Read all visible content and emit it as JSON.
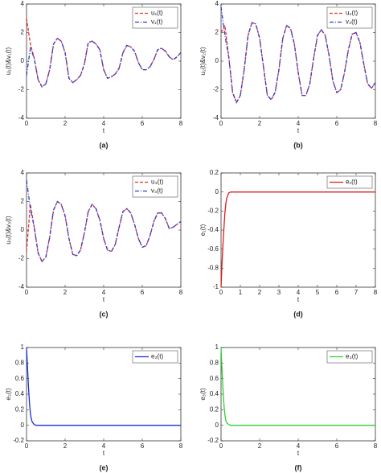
{
  "chart_data": [
    {
      "type": "line",
      "caption": "(a)",
      "xlabel": "t",
      "ylabel": "u₁(t)&v₁(t)",
      "xlim": [
        0,
        8
      ],
      "ylim": [
        -4,
        4
      ],
      "xticks": [
        0,
        2,
        4,
        6,
        8
      ],
      "yticks": [
        -4,
        -2,
        0,
        2,
        4
      ],
      "x": [
        0,
        0.2,
        0.4,
        0.6,
        0.8,
        1,
        1.2,
        1.4,
        1.6,
        1.8,
        2,
        2.2,
        2.4,
        2.6,
        2.8,
        3,
        3.2,
        3.4,
        3.6,
        3.8,
        4,
        4.2,
        4.4,
        4.6,
        4.8,
        5,
        5.2,
        5.4,
        5.6,
        5.8,
        6,
        6.2,
        6.4,
        6.6,
        6.8,
        7,
        7.2,
        7.4,
        7.6,
        7.8,
        8
      ],
      "series": [
        {
          "name": "u₁(t)",
          "color": "#e8312a",
          "style": "dashed",
          "values": [
            3.0,
            1.2,
            0.2,
            -1.3,
            -1.8,
            -1.6,
            -0.6,
            1.2,
            1.6,
            1.4,
            0.6,
            -1.2,
            -1.5,
            -1.3,
            -1.0,
            -0.2,
            1.3,
            1.4,
            1.2,
            0.8,
            -0.6,
            -1.2,
            -1.1,
            -0.9,
            -0.5,
            0.6,
            1.1,
            1.0,
            0.7,
            -0.1,
            -0.6,
            -0.6,
            -0.4,
            0.1,
            0.8,
            0.9,
            0.7,
            0.3,
            0.1,
            0.3,
            0.6
          ]
        },
        {
          "name": "v₁(t)",
          "color": "#2b3fd6",
          "style": "dashdot",
          "values": [
            -1.0,
            0.9,
            0.2,
            -1.3,
            -1.8,
            -1.6,
            -0.6,
            1.2,
            1.6,
            1.4,
            0.6,
            -1.2,
            -1.5,
            -1.3,
            -1.0,
            -0.2,
            1.3,
            1.4,
            1.2,
            0.8,
            -0.6,
            -1.2,
            -1.1,
            -0.9,
            -0.5,
            0.6,
            1.1,
            1.0,
            0.7,
            -0.1,
            -0.6,
            -0.6,
            -0.4,
            0.1,
            0.8,
            0.9,
            0.7,
            0.3,
            0.1,
            0.3,
            0.6
          ]
        }
      ]
    },
    {
      "type": "line",
      "caption": "(b)",
      "xlabel": "t",
      "ylabel": "u₂(t)&v₂(t)",
      "xlim": [
        0,
        8
      ],
      "ylim": [
        -4,
        4
      ],
      "xticks": [
        0,
        2,
        4,
        6,
        8
      ],
      "yticks": [
        -4,
        -2,
        0,
        2,
        4
      ],
      "x": [
        0,
        0.2,
        0.4,
        0.6,
        0.8,
        1,
        1.2,
        1.4,
        1.6,
        1.8,
        2,
        2.2,
        2.4,
        2.6,
        2.8,
        3,
        3.2,
        3.4,
        3.6,
        3.8,
        4,
        4.2,
        4.4,
        4.6,
        4.8,
        5,
        5.2,
        5.4,
        5.6,
        5.8,
        6,
        6.2,
        6.4,
        6.6,
        6.8,
        7,
        7.2,
        7.4,
        7.6,
        7.8,
        8
      ],
      "series": [
        {
          "name": "u₂(t)",
          "color": "#e8312a",
          "style": "dashed",
          "values": [
            2.0,
            2.5,
            0.3,
            -2.2,
            -2.9,
            -2.4,
            -0.6,
            1.8,
            2.7,
            2.6,
            1.6,
            -0.4,
            -2.4,
            -2.7,
            -2.2,
            -0.6,
            1.6,
            2.5,
            2.3,
            1.2,
            -0.8,
            -2.4,
            -2.4,
            -1.6,
            0.2,
            1.8,
            2.2,
            1.8,
            0.4,
            -1.4,
            -2.2,
            -2.0,
            -0.8,
            0.8,
            1.9,
            2.0,
            1.3,
            -0.2,
            -1.6,
            -1.9,
            -1.5
          ]
        },
        {
          "name": "v₂(t)",
          "color": "#2b3fd6",
          "style": "dashdot",
          "values": [
            3.8,
            1.8,
            0.3,
            -2.2,
            -2.9,
            -2.4,
            -0.6,
            1.8,
            2.7,
            2.6,
            1.6,
            -0.4,
            -2.4,
            -2.7,
            -2.2,
            -0.6,
            1.6,
            2.5,
            2.3,
            1.2,
            -0.8,
            -2.4,
            -2.4,
            -1.6,
            0.2,
            1.8,
            2.2,
            1.8,
            0.4,
            -1.4,
            -2.2,
            -2.0,
            -0.8,
            0.8,
            1.9,
            2.0,
            1.3,
            -0.2,
            -1.6,
            -1.9,
            -1.5
          ]
        }
      ]
    },
    {
      "type": "line",
      "caption": "(c)",
      "xlabel": "t",
      "ylabel": "u₃(t)&v₃(t)",
      "xlim": [
        0,
        8
      ],
      "ylim": [
        -4,
        4
      ],
      "xticks": [
        0,
        2,
        4,
        6,
        8
      ],
      "yticks": [
        -4,
        -2,
        0,
        2,
        4
      ],
      "x": [
        0,
        0.2,
        0.4,
        0.6,
        0.8,
        1,
        1.2,
        1.4,
        1.6,
        1.8,
        2,
        2.2,
        2.4,
        2.6,
        2.8,
        3,
        3.2,
        3.4,
        3.6,
        3.8,
        4,
        4.2,
        4.4,
        4.6,
        4.8,
        5,
        5.2,
        5.4,
        5.6,
        5.8,
        6,
        6.2,
        6.4,
        6.6,
        6.8,
        7,
        7.2,
        7.4,
        7.6,
        7.8,
        8
      ],
      "series": [
        {
          "name": "u₃(t)",
          "color": "#e8312a",
          "style": "dashed",
          "values": [
            -1.5,
            1.8,
            0.2,
            -1.6,
            -2.2,
            -1.9,
            -0.5,
            1.4,
            2.0,
            1.8,
            1.0,
            -0.6,
            -1.7,
            -1.8,
            -1.4,
            -0.2,
            1.3,
            1.8,
            1.5,
            0.7,
            -0.6,
            -1.4,
            -1.5,
            -1.0,
            0.2,
            1.3,
            1.5,
            1.2,
            0.4,
            -0.6,
            -1.2,
            -1.1,
            -0.4,
            0.6,
            1.2,
            1.2,
            0.8,
            0.1,
            0.2,
            0.4,
            0.6
          ]
        },
        {
          "name": "v₃(t)",
          "color": "#2b3fd6",
          "style": "dashdot",
          "values": [
            3.5,
            1.5,
            0.2,
            -1.6,
            -2.2,
            -1.9,
            -0.5,
            1.4,
            2.0,
            1.8,
            1.0,
            -0.6,
            -1.7,
            -1.8,
            -1.4,
            -0.2,
            1.3,
            1.8,
            1.5,
            0.7,
            -0.6,
            -1.4,
            -1.5,
            -1.0,
            0.2,
            1.3,
            1.5,
            1.2,
            0.4,
            -0.6,
            -1.2,
            -1.1,
            -0.4,
            0.6,
            1.2,
            1.2,
            0.8,
            0.1,
            0.2,
            0.4,
            0.6
          ]
        }
      ]
    },
    {
      "type": "line",
      "caption": "(d)",
      "xlabel": "t",
      "ylabel": "e₁(t)",
      "xlim": [
        0,
        8
      ],
      "ylim": [
        -1,
        0.2
      ],
      "xticks": [
        0,
        1,
        2,
        3,
        4,
        5,
        6,
        7,
        8
      ],
      "yticks": [
        -1,
        -0.8,
        -0.6,
        -0.4,
        -0.2,
        0,
        0.2
      ],
      "x": [
        0,
        0.05,
        0.1,
        0.15,
        0.2,
        0.25,
        0.3,
        0.4,
        0.5,
        1,
        2,
        4,
        6,
        8
      ],
      "series": [
        {
          "name": "e₁(t)",
          "color": "#e01b1b",
          "style": "solid",
          "values": [
            -1,
            -0.75,
            -0.55,
            -0.38,
            -0.22,
            -0.12,
            -0.06,
            -0.01,
            0,
            0,
            0,
            0,
            0,
            0
          ]
        }
      ]
    },
    {
      "type": "line",
      "caption": "(e)",
      "xlabel": "t",
      "ylabel": "e₂(t)",
      "xlim": [
        0,
        8
      ],
      "ylim": [
        -0.2,
        1
      ],
      "xticks": [
        0,
        2,
        4,
        6,
        8
      ],
      "yticks": [
        -0.2,
        0,
        0.2,
        0.4,
        0.6,
        0.8,
        1
      ],
      "x": [
        0,
        0.05,
        0.1,
        0.15,
        0.2,
        0.25,
        0.3,
        0.4,
        0.5,
        1,
        2,
        4,
        6,
        8
      ],
      "series": [
        {
          "name": "e₂(t)",
          "color": "#1a2fd9",
          "style": "solid",
          "values": [
            1,
            0.75,
            0.5,
            0.3,
            0.15,
            0.08,
            0.04,
            0.01,
            0,
            0,
            0,
            0,
            0,
            0
          ]
        }
      ]
    },
    {
      "type": "line",
      "caption": "(f)",
      "xlabel": "t",
      "ylabel": "e₃(t)",
      "xlim": [
        0,
        8
      ],
      "ylim": [
        -0.2,
        1
      ],
      "xticks": [
        0,
        2,
        4,
        6,
        8
      ],
      "yticks": [
        -0.2,
        0,
        0.2,
        0.4,
        0.6,
        0.8,
        1
      ],
      "x": [
        0,
        0.05,
        0.1,
        0.15,
        0.2,
        0.25,
        0.3,
        0.4,
        0.5,
        1,
        2,
        4,
        6,
        8
      ],
      "series": [
        {
          "name": "e₃(t)",
          "color": "#2fd12f",
          "style": "solid",
          "values": [
            1,
            0.72,
            0.46,
            0.27,
            0.13,
            0.06,
            0.03,
            0.01,
            0,
            0,
            0,
            0,
            0,
            0
          ]
        }
      ]
    }
  ]
}
